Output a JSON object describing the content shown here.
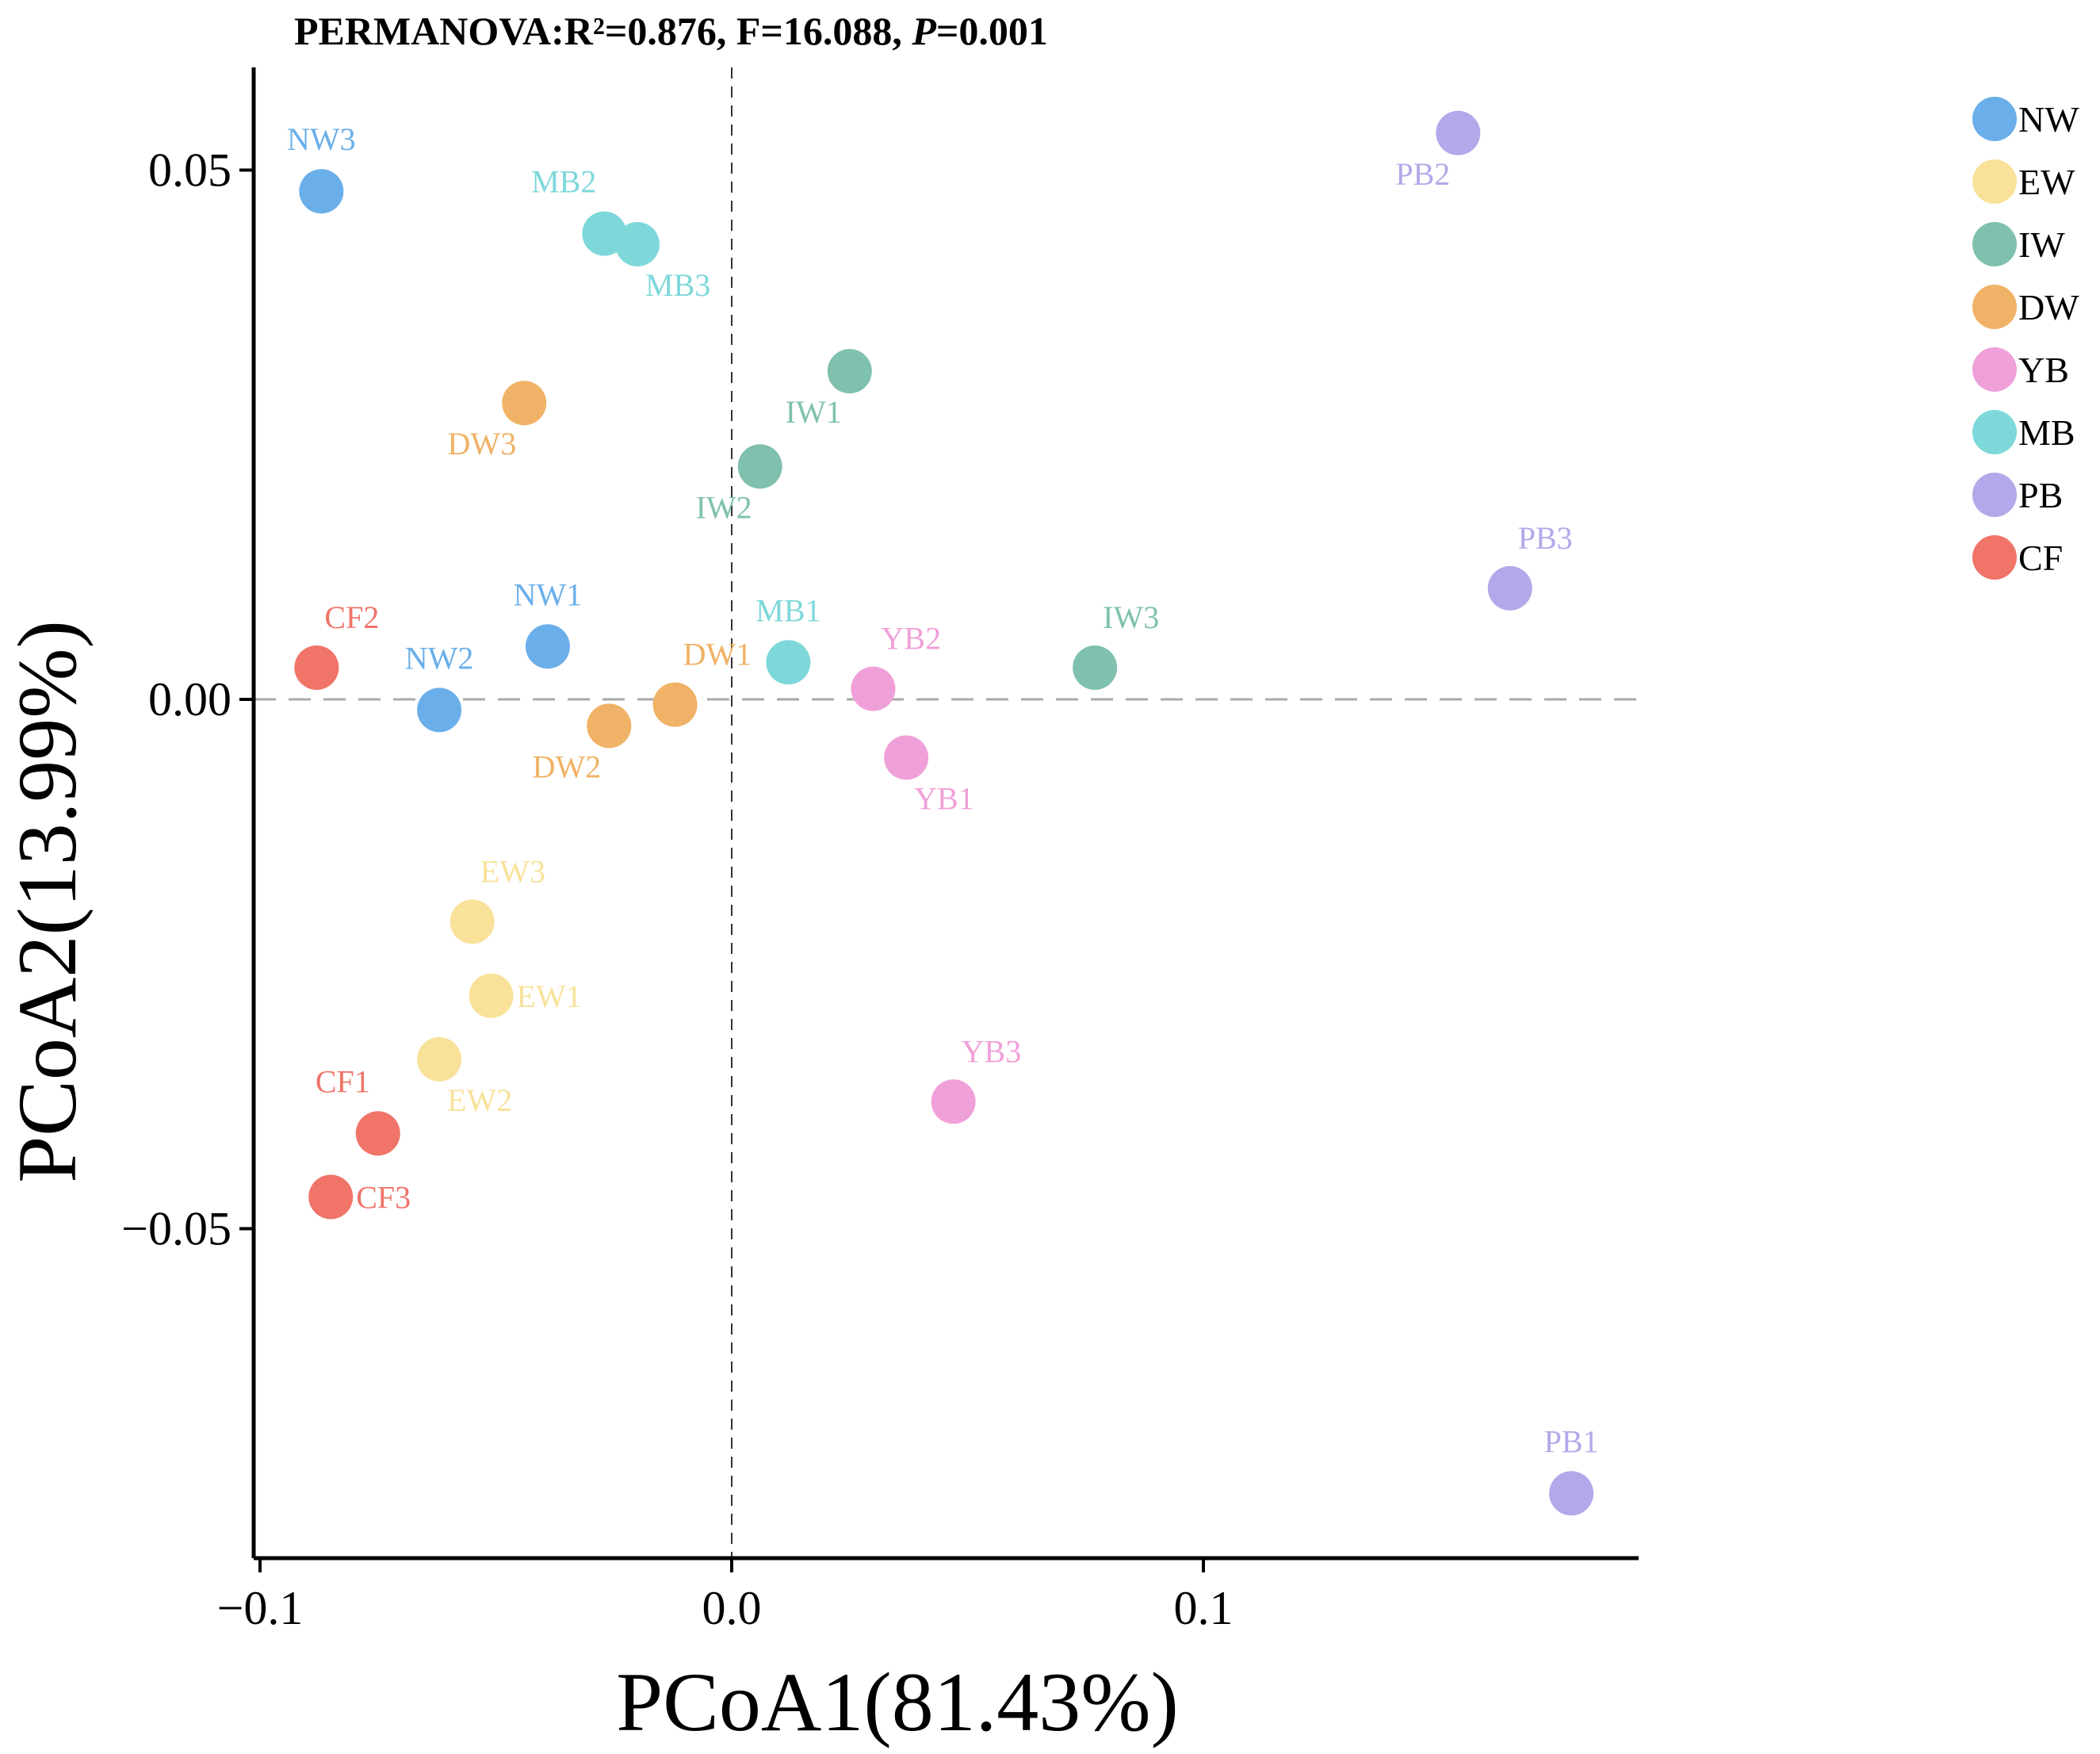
{
  "chart_data": {
    "type": "scatter",
    "title_parts": {
      "prefix": "PERMANOVA:R²=0.876, F=16.088, ",
      "p_italic": "P",
      "suffix": "=0.001"
    },
    "xlabel": "PCoA1(81.43%)",
    "ylabel": "PCoA2(13.99%)",
    "xlim": [
      -0.1,
      0.19
    ],
    "ylim": [
      -0.081,
      0.06
    ],
    "x_ticks": [
      {
        "value": -0.1,
        "label": "−0.1"
      },
      {
        "value": 0.0,
        "label": "0.0"
      },
      {
        "value": 0.1,
        "label": "0.1"
      }
    ],
    "y_ticks": [
      {
        "value": 0.05,
        "label": "0.05"
      },
      {
        "value": 0.0,
        "label": "0.00"
      },
      {
        "value": -0.05,
        "label": "−0.05"
      }
    ],
    "reference_lines": {
      "x": 0,
      "y": 0
    },
    "legend_position": "top-right",
    "groups": [
      {
        "name": "NW",
        "color": "#6AAFEA"
      },
      {
        "name": "EW",
        "color": "#F8E29A"
      },
      {
        "name": "IW",
        "color": "#7FC1AE"
      },
      {
        "name": "DW",
        "color": "#F0B266"
      },
      {
        "name": "YB",
        "color": "#F0A0D8"
      },
      {
        "name": "MB",
        "color": "#7ED8DA"
      },
      {
        "name": "PB",
        "color": "#B4A8EA"
      },
      {
        "name": "CF",
        "color": "#F07468"
      }
    ],
    "points": [
      {
        "label": "NW3",
        "group": "NW",
        "x": -0.087,
        "y": 0.048,
        "label_pos": "above"
      },
      {
        "label": "NW1",
        "group": "NW",
        "x": -0.039,
        "y": 0.005,
        "label_pos": "above"
      },
      {
        "label": "NW2",
        "group": "NW",
        "x": -0.062,
        "y": -0.001,
        "label_pos": "above"
      },
      {
        "label": "MB2",
        "group": "MB",
        "x": -0.027,
        "y": 0.044,
        "label_pos": "above-left"
      },
      {
        "label": "MB3",
        "group": "MB",
        "x": -0.02,
        "y": 0.043,
        "label_pos": "below-right"
      },
      {
        "label": "MB1",
        "group": "MB",
        "x": 0.012,
        "y": 0.0035,
        "label_pos": "above"
      },
      {
        "label": "DW3",
        "group": "DW",
        "x": -0.044,
        "y": 0.028,
        "label_pos": "below-left"
      },
      {
        "label": "DW1",
        "group": "DW",
        "x": -0.012,
        "y": -0.0005,
        "label_pos": "above-right"
      },
      {
        "label": "DW2",
        "group": "DW",
        "x": -0.026,
        "y": -0.0025,
        "label_pos": "below-left"
      },
      {
        "label": "IW1",
        "group": "IW",
        "x": 0.025,
        "y": 0.031,
        "label_pos": "below-left"
      },
      {
        "label": "IW2",
        "group": "IW",
        "x": 0.006,
        "y": 0.022,
        "label_pos": "below-left"
      },
      {
        "label": "IW3",
        "group": "IW",
        "x": 0.077,
        "y": 0.003,
        "label_pos": "above-right"
      },
      {
        "label": "YB2",
        "group": "YB",
        "x": 0.03,
        "y": 0.001,
        "label_pos": "above-right"
      },
      {
        "label": "YB1",
        "group": "YB",
        "x": 0.037,
        "y": -0.0055,
        "label_pos": "below-right"
      },
      {
        "label": "YB3",
        "group": "YB",
        "x": 0.047,
        "y": -0.038,
        "label_pos": "above-right"
      },
      {
        "label": "EW3",
        "group": "EW",
        "x": -0.055,
        "y": -0.021,
        "label_pos": "above-right"
      },
      {
        "label": "EW1",
        "group": "EW",
        "x": -0.051,
        "y": -0.028,
        "label_pos": "right"
      },
      {
        "label": "EW2",
        "group": "EW",
        "x": -0.062,
        "y": -0.034,
        "label_pos": "below-right"
      },
      {
        "label": "CF2",
        "group": "CF",
        "x": -0.088,
        "y": 0.003,
        "label_pos": "above-right"
      },
      {
        "label": "CF1",
        "group": "CF",
        "x": -0.075,
        "y": -0.041,
        "label_pos": "above-left"
      },
      {
        "label": "CF3",
        "group": "CF",
        "x": -0.085,
        "y": -0.047,
        "label_pos": "right"
      },
      {
        "label": "PB2",
        "group": "PB",
        "x": 0.154,
        "y": 0.0535,
        "label_pos": "below-left"
      },
      {
        "label": "PB3",
        "group": "PB",
        "x": 0.165,
        "y": 0.0105,
        "label_pos": "above-right"
      },
      {
        "label": "PB1",
        "group": "PB",
        "x": 0.178,
        "y": -0.075,
        "label_pos": "above"
      }
    ]
  }
}
